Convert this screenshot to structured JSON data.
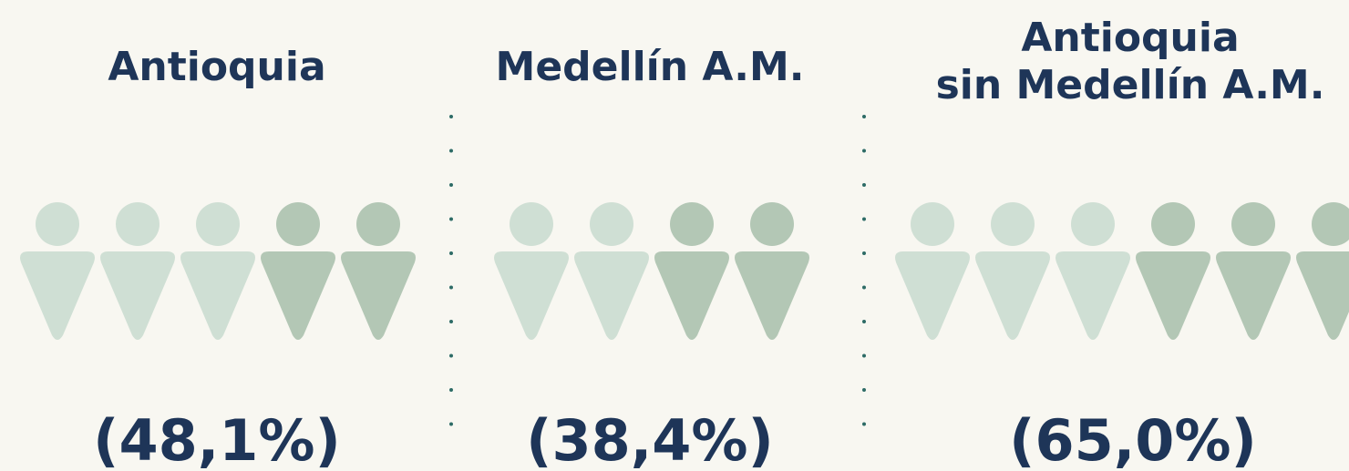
{
  "panels": [
    {
      "title": [
        "Antioquia"
      ],
      "value": "(48,1%)"
    },
    {
      "title": [
        "Medellín A.M."
      ],
      "value": "(38,4%)"
    },
    {
      "title": [
        "Antioquia",
        "sin Medellín A.M."
      ],
      "value": "(65,0%)"
    }
  ]
}
